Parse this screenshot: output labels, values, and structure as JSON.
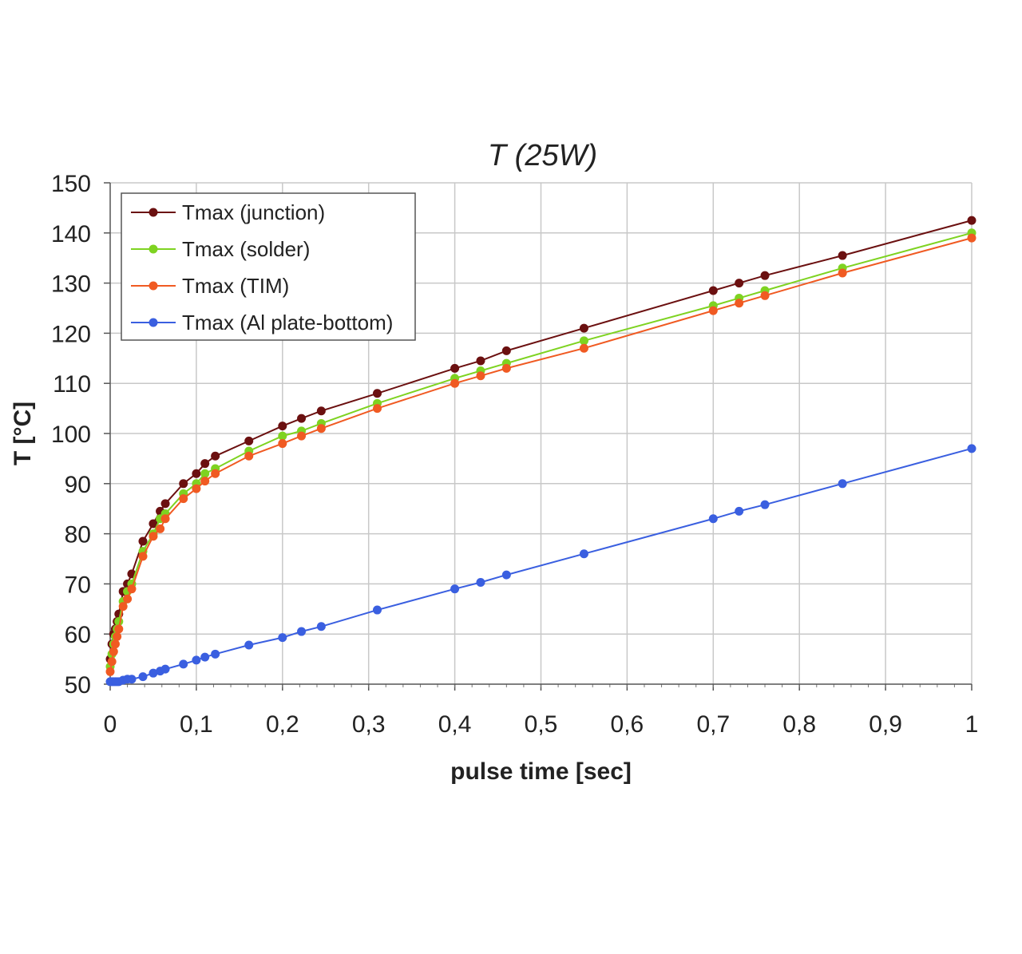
{
  "chart_data": {
    "type": "line",
    "title": "T (25W)",
    "xlabel": "pulse time [sec]",
    "ylabel": "T [°C]",
    "xlim": [
      0,
      1
    ],
    "ylim": [
      50,
      150
    ],
    "xticks": [
      0,
      0.1,
      0.2,
      0.3,
      0.4,
      0.5,
      0.6,
      0.7,
      0.8,
      0.9,
      1
    ],
    "xtick_labels": [
      "0",
      "0,1",
      "0,2",
      "0,3",
      "0,4",
      "0,5",
      "0,6",
      "0,7",
      "0,8",
      "0,9",
      "1"
    ],
    "yticks": [
      50,
      60,
      70,
      80,
      90,
      100,
      110,
      120,
      130,
      140,
      150
    ],
    "ytick_labels": [
      "50",
      "60",
      "70",
      "80",
      "90",
      "100",
      "110",
      "120",
      "130",
      "140",
      "150"
    ],
    "grid": true,
    "legend": "top-left",
    "x": [
      0,
      0.002,
      0.004,
      0.006,
      0.008,
      0.01,
      0.015,
      0.02,
      0.025,
      0.038,
      0.05,
      0.058,
      0.064,
      0.085,
      0.1,
      0.11,
      0.122,
      0.161,
      0.2,
      0.222,
      0.245,
      0.31,
      0.4,
      0.43,
      0.46,
      0.55,
      0.7,
      0.73,
      0.76,
      0.85,
      1.0
    ],
    "series": [
      {
        "name": "Tmax (junction)",
        "color": "#6b1010",
        "values": [
          55,
          58,
          60,
          61,
          62.5,
          64,
          68.5,
          70,
          72,
          78.5,
          82,
          84.5,
          86,
          90,
          92,
          94,
          95.5,
          98.5,
          101.5,
          103,
          104.5,
          108,
          113,
          114.5,
          116.5,
          121,
          128.5,
          130,
          131.5,
          135.5,
          142.5
        ]
      },
      {
        "name": "Tmax (solder)",
        "color": "#7ed321",
        "values": [
          53.5,
          56,
          58,
          59.5,
          61,
          62.5,
          66.5,
          68.5,
          70,
          76.5,
          80,
          83,
          84,
          88,
          90,
          92,
          93,
          96.5,
          99.5,
          100.5,
          102,
          106,
          111,
          112.5,
          114,
          118.5,
          125.5,
          127,
          128.5,
          133,
          140
        ]
      },
      {
        "name": "Tmax (TIM)",
        "color": "#f05a22",
        "values": [
          52.5,
          54.5,
          56.5,
          58,
          59.5,
          61,
          65.5,
          67,
          69,
          75.5,
          79.5,
          81,
          83,
          87,
          89,
          90.5,
          92,
          95.5,
          98,
          99.5,
          101,
          105,
          110,
          111.5,
          113,
          117,
          124.5,
          126,
          127.5,
          132,
          139
        ]
      },
      {
        "name": "Tmax (Al plate-bottom)",
        "color": "#3a5fe0",
        "values": [
          50.5,
          50.5,
          50.5,
          50.5,
          50.5,
          50.5,
          50.8,
          51,
          51,
          51.5,
          52.2,
          52.6,
          53,
          54,
          54.8,
          55.4,
          56,
          57.8,
          59.3,
          60.5,
          61.5,
          64.8,
          69,
          70.3,
          71.8,
          76,
          83,
          84.5,
          85.8,
          90,
          97
        ]
      }
    ]
  }
}
